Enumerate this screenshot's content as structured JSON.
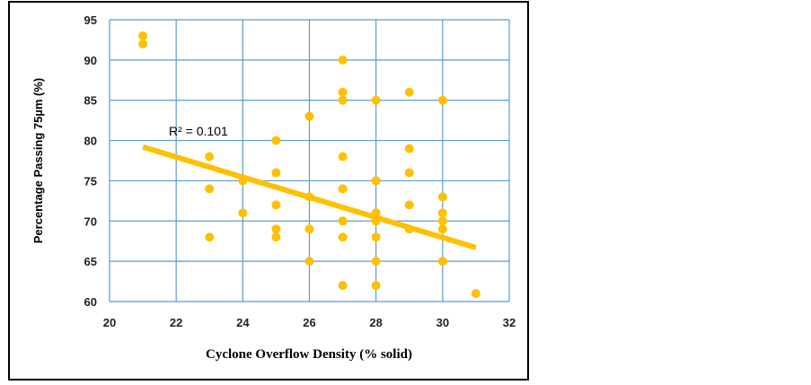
{
  "chart_data": {
    "type": "scatter",
    "xlabel": "Cyclone Overflow Density (% solid)",
    "ylabel": "Percentage Passing 75µm (%)",
    "xlim": [
      20,
      32
    ],
    "ylim": [
      60,
      95
    ],
    "x_ticks": [
      20,
      22,
      24,
      26,
      28,
      30,
      32
    ],
    "y_ticks": [
      60,
      65,
      70,
      75,
      80,
      85,
      90,
      95
    ],
    "grid": true,
    "annotation": "R² = 0.101",
    "colors": {
      "points": "#FFC000",
      "trendline": "#FFC000",
      "grid": "#5B9BD5"
    },
    "points": [
      {
        "x": 21,
        "y": 93
      },
      {
        "x": 21,
        "y": 92
      },
      {
        "x": 23,
        "y": 78
      },
      {
        "x": 23,
        "y": 74
      },
      {
        "x": 23,
        "y": 68
      },
      {
        "x": 24,
        "y": 75
      },
      {
        "x": 24,
        "y": 71
      },
      {
        "x": 25,
        "y": 80
      },
      {
        "x": 25,
        "y": 76
      },
      {
        "x": 25,
        "y": 72
      },
      {
        "x": 25,
        "y": 69
      },
      {
        "x": 25,
        "y": 68
      },
      {
        "x": 26,
        "y": 83
      },
      {
        "x": 26,
        "y": 73
      },
      {
        "x": 26,
        "y": 69
      },
      {
        "x": 26,
        "y": 65
      },
      {
        "x": 27,
        "y": 90
      },
      {
        "x": 27,
        "y": 86
      },
      {
        "x": 27,
        "y": 85
      },
      {
        "x": 27,
        "y": 78
      },
      {
        "x": 27,
        "y": 74
      },
      {
        "x": 27,
        "y": 70
      },
      {
        "x": 27,
        "y": 68
      },
      {
        "x": 27,
        "y": 62
      },
      {
        "x": 28,
        "y": 85
      },
      {
        "x": 28,
        "y": 75
      },
      {
        "x": 28,
        "y": 71
      },
      {
        "x": 28,
        "y": 70
      },
      {
        "x": 28,
        "y": 68
      },
      {
        "x": 28,
        "y": 65
      },
      {
        "x": 28,
        "y": 62
      },
      {
        "x": 29,
        "y": 86
      },
      {
        "x": 29,
        "y": 79
      },
      {
        "x": 29,
        "y": 76
      },
      {
        "x": 29,
        "y": 72
      },
      {
        "x": 29,
        "y": 69
      },
      {
        "x": 30,
        "y": 85
      },
      {
        "x": 30,
        "y": 73
      },
      {
        "x": 30,
        "y": 71
      },
      {
        "x": 30,
        "y": 70
      },
      {
        "x": 30,
        "y": 69
      },
      {
        "x": 30,
        "y": 65
      },
      {
        "x": 31,
        "y": 61
      }
    ],
    "trendline": {
      "x": [
        21,
        31
      ],
      "y": [
        79.2,
        66.7
      ]
    }
  }
}
